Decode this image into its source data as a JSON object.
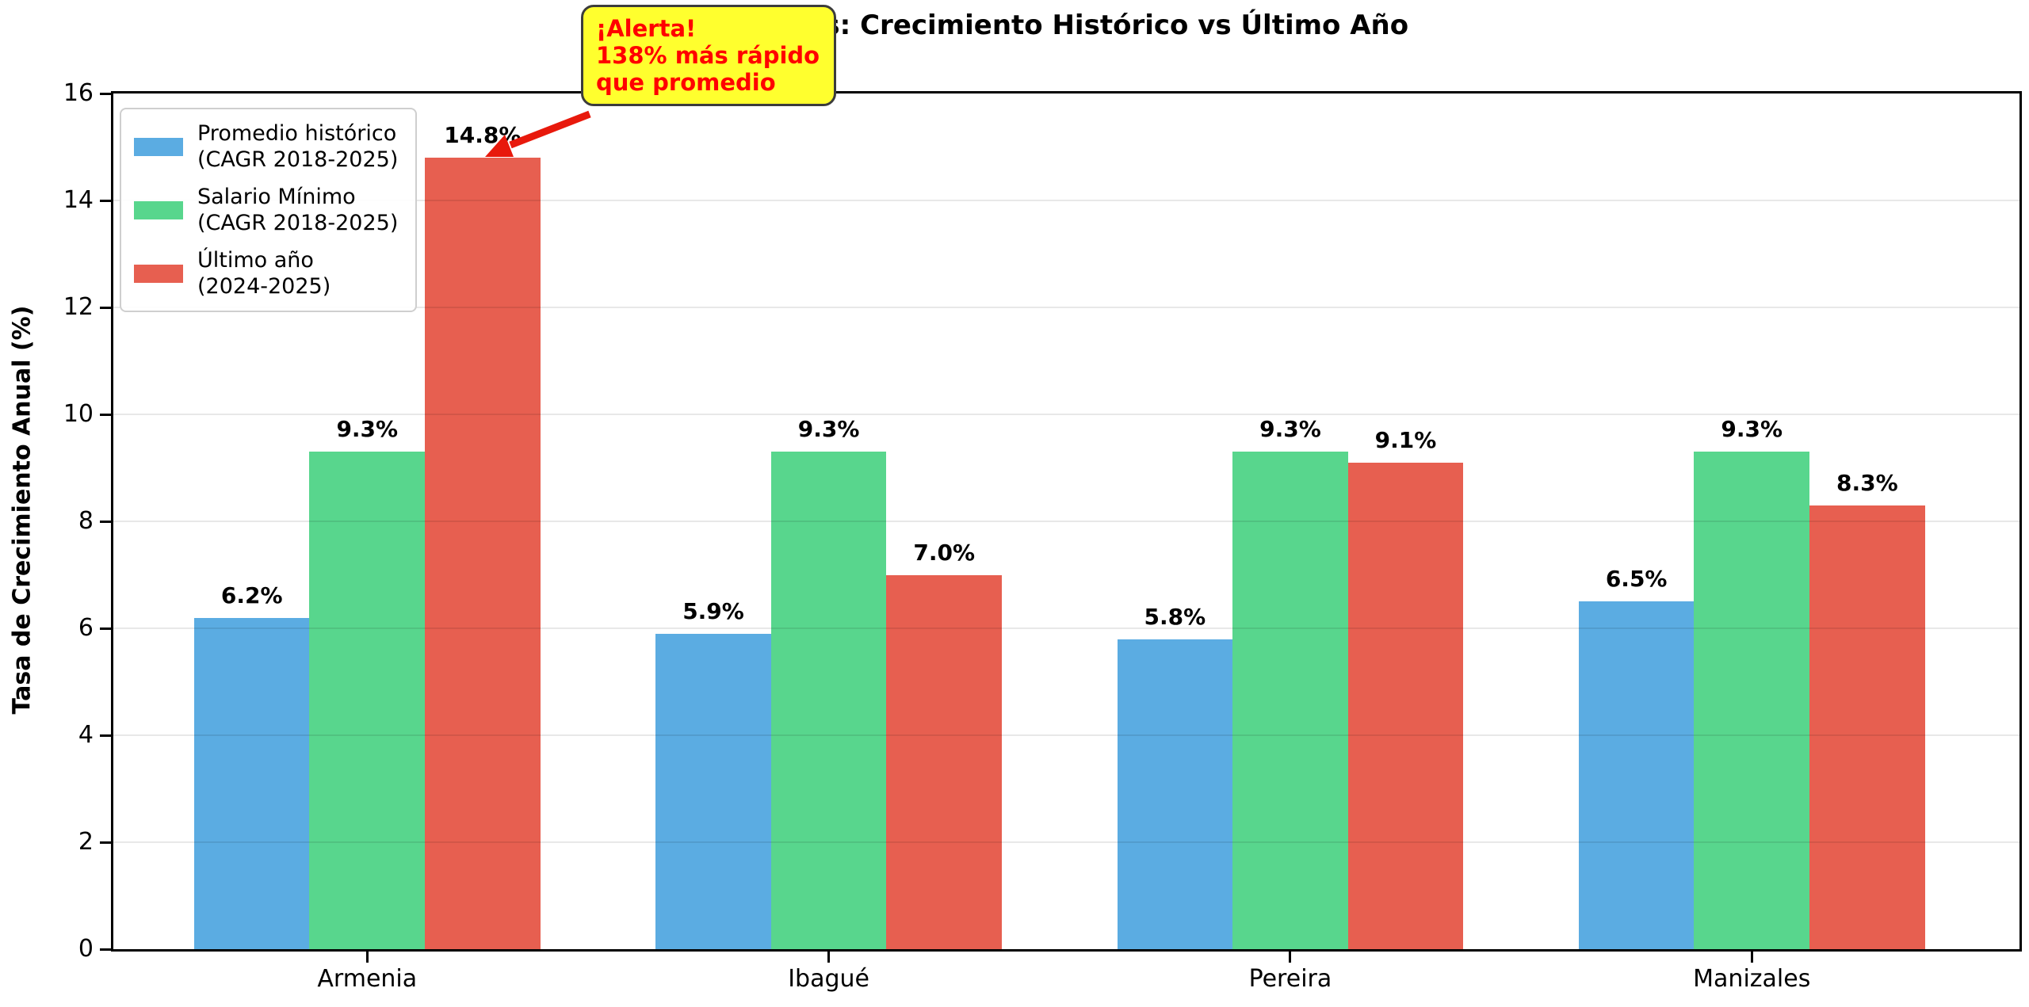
{
  "title": "Síntesis: Crecimiento Histórico vs Último Año",
  "chart_data": {
    "type": "bar",
    "title": "Síntesis: Crecimiento Histórico vs Último Año",
    "xlabel": "",
    "ylabel": "Tasa de Crecimiento Anual (%)",
    "categories": [
      "Armenia",
      "Ibagué",
      "Pereira",
      "Manizales"
    ],
    "series": [
      {
        "name": "Promedio histórico\n(CAGR 2018-2025)",
        "color": "#5BACE2",
        "values": [
          6.2,
          5.9,
          5.8,
          6.5
        ]
      },
      {
        "name": "Salario Mínimo\n(CAGR 2018-2025)",
        "color": "#58D68D",
        "values": [
          9.3,
          9.3,
          9.3,
          9.3
        ]
      },
      {
        "name": "Último año\n(2024-2025)",
        "color": "#E75F50",
        "values": [
          14.8,
          7.0,
          9.1,
          8.3
        ]
      }
    ],
    "bar_label_format": "percent_one_decimal",
    "ylim": [
      0,
      16
    ],
    "yticks": [
      0,
      2,
      4,
      6,
      8,
      10,
      12,
      14,
      16
    ],
    "grid": true,
    "legend_position": "upper-left",
    "annotation": {
      "text": "¡Alerta!\n138% más rápido\nque promedio",
      "color": "#FF0000",
      "bg": "#FFFF2E",
      "border": "#3C3C3C",
      "arrow_color": "#E8190C",
      "points_to": "Armenia — Último año (2024-2025) bar (14.8%)"
    }
  }
}
